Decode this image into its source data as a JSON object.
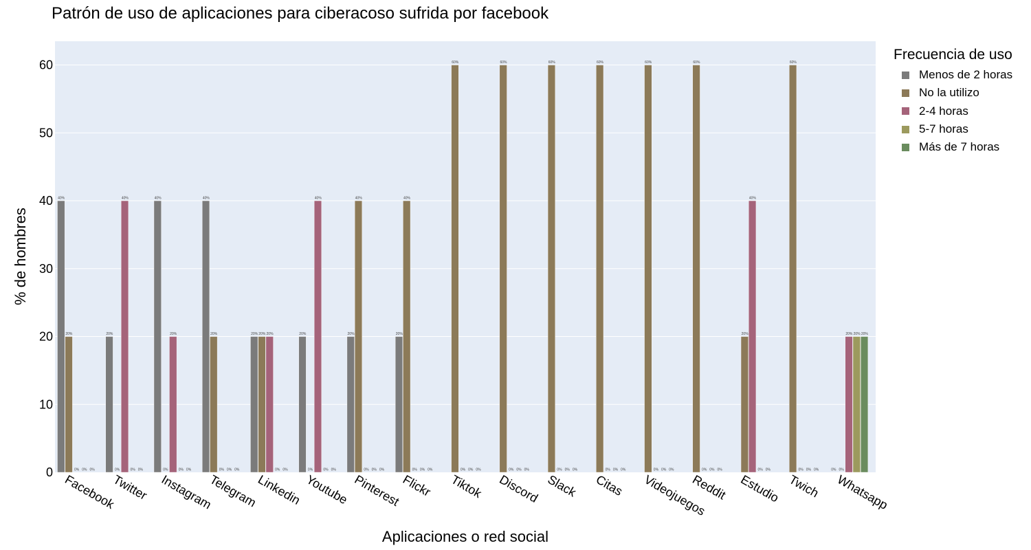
{
  "chart_data": {
    "type": "bar",
    "title": "Patrón de uso de aplicaciones para ciberacoso sufrida por facebook",
    "xlabel": "Aplicaciones o red social",
    "ylabel": "% de hombres",
    "ylim": [
      0,
      63.5
    ],
    "yticks": [
      "0",
      "10",
      "20",
      "30",
      "40",
      "50",
      "60"
    ],
    "grid": true,
    "legend_title": "Frecuencia de uso",
    "legend_position": "right",
    "categories": [
      "Facebook",
      "Twitter",
      "Instagram",
      "Telegram",
      "Linkedin",
      "Youtube",
      "Pinterest",
      "Flickr",
      "Tiktok",
      "Discord",
      "Slack",
      "Citas",
      "Videojuegos",
      "Reddit",
      "Estudio",
      "Twich",
      "Whatsapp"
    ],
    "series": [
      {
        "name": "Menos de 2 horas",
        "color": "#7b7b7b",
        "values": [
          40,
          20,
          40,
          40,
          20,
          20,
          20,
          20,
          null,
          null,
          null,
          null,
          null,
          null,
          null,
          null,
          0
        ]
      },
      {
        "name": "No la utilizo",
        "color": "#8c7a58",
        "values": [
          20,
          0,
          0,
          20,
          20,
          0,
          40,
          40,
          60,
          60,
          60,
          60,
          60,
          60,
          20,
          60,
          0
        ]
      },
      {
        "name": "2-4 horas",
        "color": "#a5637a",
        "values": [
          0,
          40,
          20,
          0,
          20,
          40,
          0,
          0,
          0,
          0,
          0,
          0,
          0,
          0,
          40,
          0,
          20
        ]
      },
      {
        "name": "5-7 horas",
        "color": "#9c9a5e",
        "values": [
          0,
          0,
          0,
          0,
          0,
          0,
          0,
          0,
          0,
          0,
          0,
          0,
          0,
          0,
          0,
          0,
          20
        ]
      },
      {
        "name": "Más de 7 horas",
        "color": "#6a8c5e",
        "values": [
          0,
          0,
          0,
          0,
          0,
          0,
          0,
          0,
          0,
          0,
          0,
          0,
          0,
          0,
          0,
          0,
          20
        ]
      }
    ]
  }
}
